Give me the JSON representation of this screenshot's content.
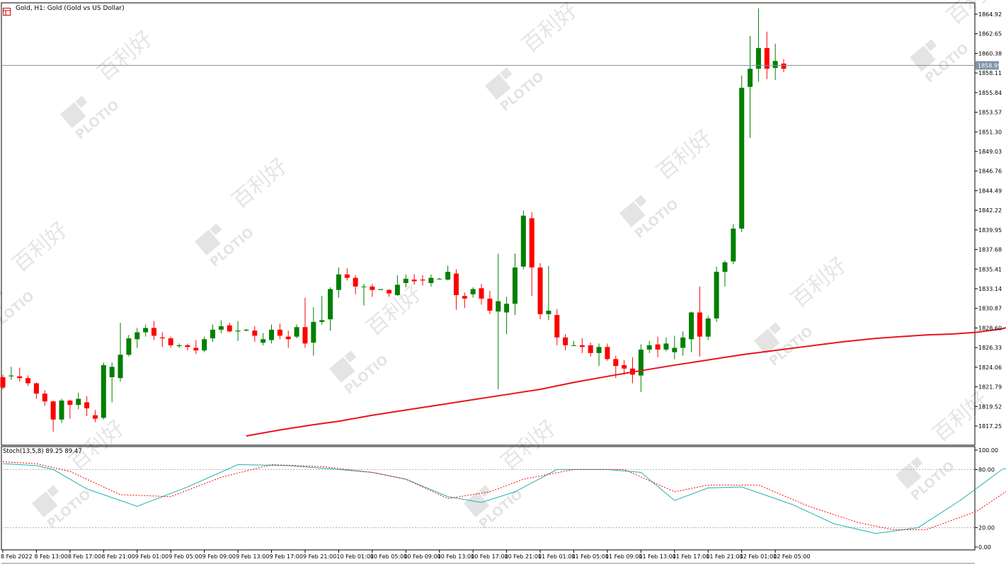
{
  "header": {
    "title": "Gold, H1:  Gold (Gold vs US Dollar)",
    "icons": [
      "chart-grid-icon",
      "chart-close-icon"
    ]
  },
  "colors": {
    "bull": "#008000",
    "bear": "#ff0000",
    "ma": "#e8141c",
    "stoch_main": "#20b2aa",
    "stoch_signal": "#ff0000",
    "bid_line": "#8092a6",
    "price_label_bg": "#8092a6"
  },
  "indicator": {
    "label": "Stoch(13,5,8) 89.25 89.47",
    "yticks": [
      "100.00",
      "80.00",
      "20.00",
      "0.00"
    ]
  },
  "chart_data": {
    "type": "candlestick",
    "symbol": "Gold",
    "timeframe": "H1",
    "current_price": "1858.99",
    "y_ticks": [
      "1864.92",
      "1862.65",
      "1860.38",
      "1858.11",
      "1855.84",
      "1853.57",
      "1851.30",
      "1849.03",
      "1846.76",
      "1844.49",
      "1842.22",
      "1839.95",
      "1837.68",
      "1835.41",
      "1833.14",
      "1830.87",
      "1828.60",
      "1826.33",
      "1824.06",
      "1821.79",
      "1819.52",
      "1817.25"
    ],
    "x_ticks": [
      "8 Feb 2022",
      "8 Feb 13:00",
      "8 Feb 17:00",
      "8 Feb 21:00",
      "9 Feb 01:00",
      "9 Feb 05:00",
      "9 Feb 09:00",
      "9 Feb 13:00",
      "9 Feb 17:00",
      "9 Feb 21:00",
      "10 Feb 01:00",
      "10 Feb 05:00",
      "10 Feb 09:00",
      "10 Feb 13:00",
      "10 Feb 17:00",
      "10 Feb 21:00",
      "11 Feb 01:00",
      "11 Feb 05:00",
      "11 Feb 09:00",
      "11 Feb 13:00",
      "11 Feb 17:00",
      "11 Feb 21:00",
      "12 Feb 01:00",
      "12 Feb 05:00"
    ],
    "ohlc": [
      [
        1822.9,
        1823.2,
        1821.5,
        1821.7
      ],
      [
        1823.0,
        1824.1,
        1822.6,
        1823.1
      ],
      [
        1823.0,
        1824.0,
        1822.4,
        1822.8
      ],
      [
        1822.8,
        1823.1,
        1821.9,
        1822.2
      ],
      [
        1822.2,
        1822.3,
        1820.4,
        1821.0
      ],
      [
        1821.0,
        1821.4,
        1819.6,
        1820.1
      ],
      [
        1820.1,
        1820.2,
        1816.6,
        1818.0
      ],
      [
        1818.0,
        1820.4,
        1817.6,
        1820.2
      ],
      [
        1820.2,
        1820.3,
        1818.1,
        1819.7
      ],
      [
        1819.7,
        1821.1,
        1819.2,
        1820.4
      ],
      [
        1820.0,
        1820.7,
        1818.4,
        1819.3
      ],
      [
        1818.5,
        1819.1,
        1817.7,
        1818.1
      ],
      [
        1818.2,
        1824.6,
        1818.0,
        1824.3
      ],
      [
        1822.9,
        1824.6,
        1820.0,
        1824.1
      ],
      [
        1822.8,
        1829.2,
        1822.4,
        1825.5
      ],
      [
        1825.5,
        1827.8,
        1825.3,
        1827.4
      ],
      [
        1827.3,
        1828.6,
        1826.3,
        1828.1
      ],
      [
        1828.1,
        1829.0,
        1827.6,
        1828.6
      ],
      [
        1828.6,
        1829.4,
        1827.2,
        1827.7
      ],
      [
        1827.5,
        1828.1,
        1826.4,
        1827.4
      ],
      [
        1827.4,
        1827.6,
        1826.3,
        1826.6
      ],
      [
        1826.5,
        1826.8,
        1826.3,
        1826.6
      ],
      [
        1826.6,
        1826.8,
        1826.0,
        1826.4
      ],
      [
        1826.3,
        1827.2,
        1825.6,
        1826.0
      ],
      [
        1826.0,
        1827.6,
        1825.8,
        1827.3
      ],
      [
        1827.4,
        1829.0,
        1827.0,
        1828.4
      ],
      [
        1828.4,
        1829.5,
        1828.0,
        1828.8
      ],
      [
        1828.9,
        1829.2,
        1828.1,
        1828.2
      ],
      [
        1828.2,
        1829.4,
        1827.1,
        1828.3
      ],
      [
        1828.3,
        1828.5,
        1828.2,
        1828.4
      ],
      [
        1828.3,
        1828.8,
        1827.0,
        1827.7
      ],
      [
        1826.9,
        1828.0,
        1826.6,
        1827.3
      ],
      [
        1827.2,
        1829.0,
        1826.8,
        1828.4
      ],
      [
        1828.4,
        1829.1,
        1827.3,
        1827.7
      ],
      [
        1827.6,
        1828.3,
        1826.3,
        1827.3
      ],
      [
        1827.6,
        1829.0,
        1827.4,
        1828.7
      ],
      [
        1828.7,
        1832.1,
        1826.3,
        1826.8
      ],
      [
        1826.9,
        1831.0,
        1825.4,
        1829.3
      ],
      [
        1829.3,
        1832.3,
        1829.0,
        1829.5
      ],
      [
        1829.6,
        1833.3,
        1828.3,
        1833.1
      ],
      [
        1833.0,
        1835.6,
        1832.1,
        1834.8
      ],
      [
        1834.8,
        1835.5,
        1834.1,
        1834.4
      ],
      [
        1834.4,
        1834.7,
        1832.5,
        1833.4
      ],
      [
        1833.4,
        1833.7,
        1831.2,
        1833.4
      ],
      [
        1833.4,
        1833.7,
        1832.2,
        1833.0
      ],
      [
        1833.0,
        1833.1,
        1833.0,
        1833.1
      ],
      [
        1833.0,
        1833.1,
        1832.2,
        1832.6
      ],
      [
        1832.4,
        1834.7,
        1832.3,
        1833.6
      ],
      [
        1833.8,
        1834.8,
        1833.3,
        1834.3
      ],
      [
        1834.2,
        1834.8,
        1833.6,
        1834.0
      ],
      [
        1834.2,
        1834.7,
        1833.5,
        1834.1
      ],
      [
        1833.8,
        1834.8,
        1833.4,
        1834.4
      ],
      [
        1834.3,
        1834.4,
        1834.2,
        1834.3
      ],
      [
        1834.2,
        1835.8,
        1834.1,
        1835.1
      ],
      [
        1834.9,
        1835.4,
        1830.7,
        1832.4
      ],
      [
        1832.3,
        1832.7,
        1830.9,
        1832.0
      ],
      [
        1832.5,
        1833.3,
        1832.1,
        1833.1
      ],
      [
        1833.2,
        1833.7,
        1831.3,
        1832.0
      ],
      [
        1832.0,
        1832.9,
        1830.2,
        1830.6
      ],
      [
        1830.5,
        1837.2,
        1821.5,
        1831.7
      ],
      [
        1830.4,
        1832.2,
        1827.9,
        1831.4
      ],
      [
        1831.4,
        1837.2,
        1830.1,
        1835.6
      ],
      [
        1835.7,
        1842.2,
        1835.4,
        1841.6
      ],
      [
        1841.3,
        1842.0,
        1832.3,
        1835.6
      ],
      [
        1835.6,
        1836.1,
        1829.6,
        1830.2
      ],
      [
        1830.2,
        1835.8,
        1829.5,
        1830.6
      ],
      [
        1830.1,
        1830.8,
        1826.6,
        1827.5
      ],
      [
        1827.5,
        1827.9,
        1826.0,
        1826.6
      ],
      [
        1826.6,
        1827.1,
        1826.5,
        1826.6
      ],
      [
        1826.6,
        1827.4,
        1825.7,
        1826.4
      ],
      [
        1826.6,
        1826.9,
        1825.3,
        1825.7
      ],
      [
        1825.7,
        1826.8,
        1824.2,
        1826.4
      ],
      [
        1826.4,
        1826.8,
        1824.8,
        1825.0
      ],
      [
        1825.0,
        1825.4,
        1822.8,
        1824.2
      ],
      [
        1824.3,
        1824.9,
        1823.2,
        1823.9
      ],
      [
        1823.9,
        1825.2,
        1822.2,
        1823.2
      ],
      [
        1823.1,
        1826.7,
        1821.2,
        1826.1
      ],
      [
        1826.1,
        1827.1,
        1825.7,
        1826.6
      ],
      [
        1826.7,
        1827.6,
        1825.2,
        1826.1
      ],
      [
        1826.1,
        1827.5,
        1825.9,
        1826.8
      ],
      [
        1825.8,
        1827.7,
        1825.0,
        1826.3
      ],
      [
        1826.3,
        1828.2,
        1825.4,
        1827.5
      ],
      [
        1827.3,
        1830.5,
        1825.8,
        1830.4
      ],
      [
        1830.4,
        1833.4,
        1825.3,
        1827.6
      ],
      [
        1827.6,
        1830.0,
        1827.2,
        1829.7
      ],
      [
        1829.7,
        1835.7,
        1829.3,
        1835.1
      ],
      [
        1835.1,
        1836.4,
        1833.4,
        1836.2
      ],
      [
        1836.3,
        1840.6,
        1836.0,
        1840.1
      ],
      [
        1840.1,
        1857.8,
        1839.7,
        1856.4
      ],
      [
        1856.5,
        1862.4,
        1850.6,
        1858.6
      ],
      [
        1858.6,
        1865.6,
        1857.1,
        1861.0
      ],
      [
        1861.0,
        1862.9,
        1857.4,
        1858.6
      ],
      [
        1858.7,
        1861.5,
        1857.3,
        1859.5
      ],
      [
        1859.2,
        1859.7,
        1858.2,
        1858.6
      ]
    ],
    "moving_average": {
      "description_hidden": true,
      "points": [
        [
          29,
          1816.1
        ],
        [
          33,
          1816.8
        ],
        [
          37,
          1817.4
        ],
        [
          40,
          1817.8
        ],
        [
          44,
          1818.5
        ],
        [
          48,
          1819.1
        ],
        [
          52,
          1819.7
        ],
        [
          56,
          1820.3
        ],
        [
          60,
          1820.9
        ],
        [
          64,
          1821.5
        ],
        [
          68,
          1822.3
        ],
        [
          72,
          1823.0
        ],
        [
          75,
          1823.5
        ],
        [
          80,
          1824.3
        ],
        [
          84,
          1824.9
        ],
        [
          88,
          1825.5
        ],
        [
          92,
          1826.0
        ],
        [
          96,
          1826.5
        ],
        [
          100,
          1827.0
        ],
        [
          104,
          1827.4
        ],
        [
          107,
          1827.6
        ],
        [
          110,
          1827.8
        ],
        [
          113,
          1827.9
        ],
        [
          116,
          1828.1
        ],
        [
          119,
          1828.5
        ],
        [
          122,
          1829.3
        ],
        [
          125,
          1830.2
        ],
        [
          127,
          1830.9
        ]
      ]
    },
    "stochastic": {
      "params": "13,5,8",
      "main": [
        [
          0,
          86
        ],
        [
          4,
          84
        ],
        [
          6,
          80
        ],
        [
          10,
          60
        ],
        [
          16,
          42
        ],
        [
          22,
          62
        ],
        [
          28,
          85
        ],
        [
          34,
          84
        ],
        [
          40,
          80
        ],
        [
          44,
          77
        ],
        [
          48,
          70
        ],
        [
          53,
          52
        ],
        [
          57,
          46
        ],
        [
          61,
          57
        ],
        [
          66,
          80
        ],
        [
          72,
          80
        ],
        [
          76,
          77
        ],
        [
          80,
          48
        ],
        [
          84,
          61
        ],
        [
          88,
          62
        ],
        [
          94,
          44
        ],
        [
          99,
          24
        ],
        [
          104,
          14
        ],
        [
          109,
          20
        ],
        [
          114,
          48
        ],
        [
          119,
          80
        ],
        [
          124,
          91
        ],
        [
          127,
          91
        ]
      ],
      "signal": [
        [
          0,
          88
        ],
        [
          4,
          86
        ],
        [
          8,
          78
        ],
        [
          14,
          54
        ],
        [
          20,
          52
        ],
        [
          26,
          72
        ],
        [
          32,
          85
        ],
        [
          38,
          83
        ],
        [
          44,
          77
        ],
        [
          48,
          70
        ],
        [
          53,
          50
        ],
        [
          58,
          57
        ],
        [
          62,
          70
        ],
        [
          68,
          80
        ],
        [
          74,
          80
        ],
        [
          80,
          57
        ],
        [
          84,
          64
        ],
        [
          90,
          64
        ],
        [
          96,
          42
        ],
        [
          102,
          25
        ],
        [
          106,
          18
        ],
        [
          110,
          18
        ],
        [
          116,
          37
        ],
        [
          122,
          72
        ],
        [
          126,
          90
        ],
        [
          127,
          89
        ]
      ]
    }
  }
}
